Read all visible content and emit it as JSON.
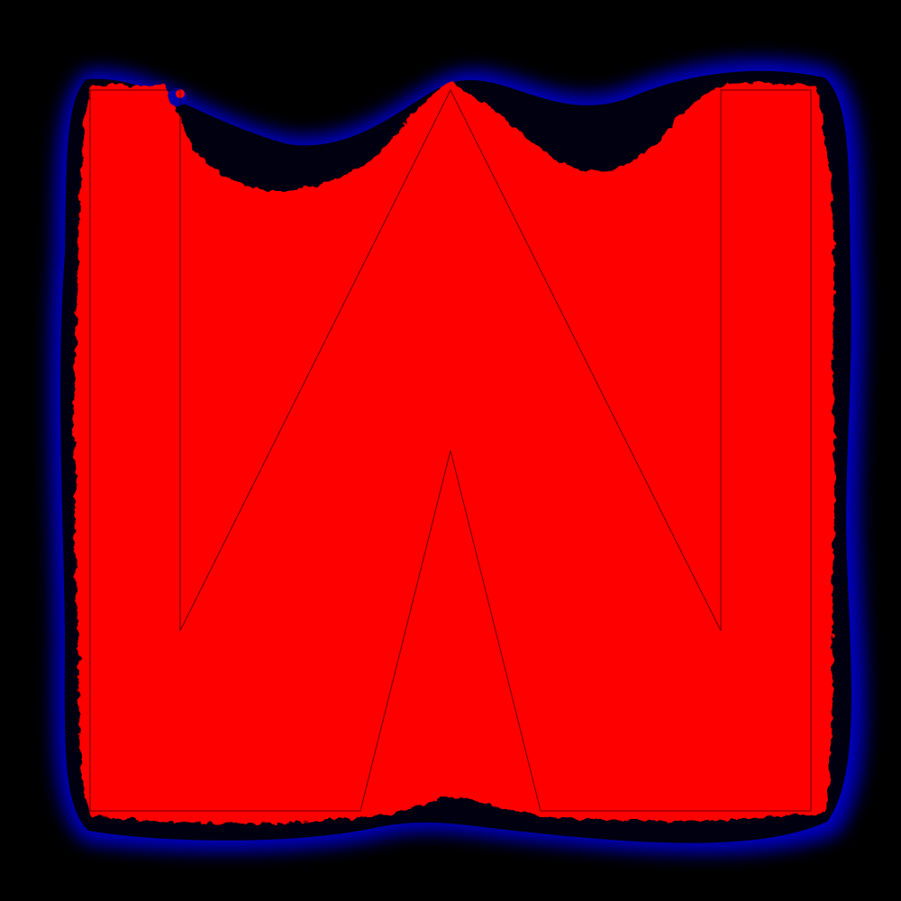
{
  "image": {
    "description_tags": [
      "fractal-render",
      "red-interior",
      "blue-halo",
      "black-background"
    ],
    "colors": {
      "background": "#000000",
      "fill": "#ff0000",
      "halo": "#0000cc",
      "halo_outer": "#000044",
      "outline": "#000000"
    }
  }
}
